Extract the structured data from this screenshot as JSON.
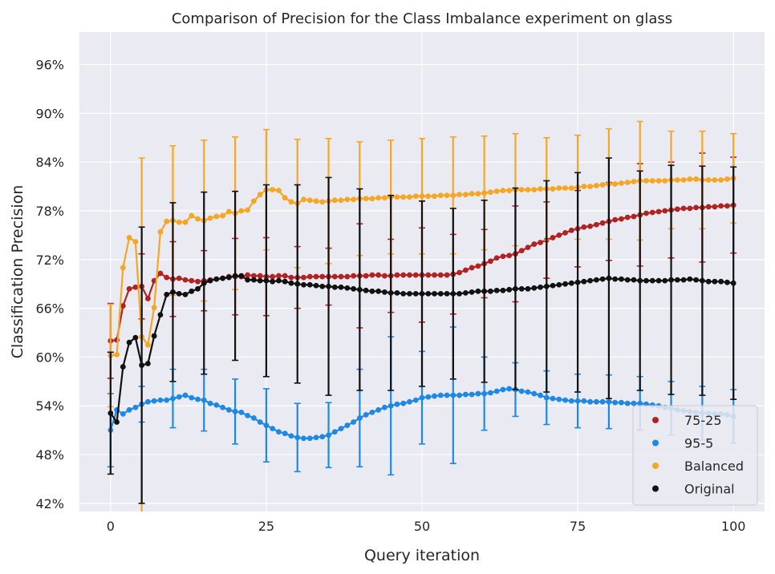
{
  "chart_data": {
    "type": "line",
    "title": "Comparison of Precision for the Class Imbalance experiment on glass",
    "xlabel": "Query iteration",
    "ylabel": "Classification Precision",
    "xlim": [
      -5,
      105
    ],
    "ylim": [
      0.41,
      1.0
    ],
    "x_ticks": [
      0,
      25,
      50,
      75,
      100
    ],
    "x_tick_labels": [
      "0",
      "25",
      "50",
      "75",
      "100"
    ],
    "y_ticks": [
      0.42,
      0.48,
      0.54,
      0.6,
      0.66,
      0.72,
      0.78,
      0.84,
      0.9,
      0.96
    ],
    "y_tick_labels": [
      "42%",
      "48%",
      "54%",
      "60%",
      "66%",
      "72%",
      "78%",
      "84%",
      "90%",
      "96%"
    ],
    "grid": true,
    "legend_position": "bottom-right",
    "background": "#eaeaf2",
    "errorbar_every": 5,
    "series": [
      {
        "name": "75-25",
        "color": "#b22222",
        "values": [
          0.62,
          0.621,
          0.663,
          0.684,
          0.686,
          0.687,
          0.672,
          0.694,
          0.703,
          0.698,
          0.696,
          0.697,
          0.695,
          0.694,
          0.693,
          0.694,
          0.695,
          0.696,
          0.697,
          0.699,
          0.699,
          0.699,
          0.701,
          0.7,
          0.7,
          0.699,
          0.699,
          0.7,
          0.7,
          0.698,
          0.698,
          0.698,
          0.699,
          0.699,
          0.699,
          0.699,
          0.699,
          0.699,
          0.699,
          0.7,
          0.7,
          0.7,
          0.701,
          0.701,
          0.7,
          0.7,
          0.701,
          0.701,
          0.701,
          0.701,
          0.701,
          0.701,
          0.701,
          0.701,
          0.701,
          0.702,
          0.704,
          0.707,
          0.71,
          0.712,
          0.715,
          0.718,
          0.722,
          0.724,
          0.725,
          0.727,
          0.731,
          0.735,
          0.739,
          0.741,
          0.744,
          0.747,
          0.75,
          0.753,
          0.756,
          0.758,
          0.76,
          0.761,
          0.763,
          0.765,
          0.767,
          0.769,
          0.77,
          0.772,
          0.773,
          0.775,
          0.777,
          0.778,
          0.779,
          0.78,
          0.781,
          0.782,
          0.783,
          0.783,
          0.784,
          0.784,
          0.785,
          0.785,
          0.786,
          0.786,
          0.787
        ],
        "errors": [
          [
            0,
            0.046
          ],
          [
            5,
            0.04
          ],
          [
            10,
            0.046
          ],
          [
            15,
            0.037
          ],
          [
            20,
            0.047
          ],
          [
            25,
            0.048
          ],
          [
            30,
            0.038
          ],
          [
            35,
            0.035
          ],
          [
            40,
            0.064
          ],
          [
            45,
            0.045
          ],
          [
            50,
            0.058
          ],
          [
            55,
            0.049
          ],
          [
            60,
            0.042
          ],
          [
            65,
            0.059
          ],
          [
            70,
            0.047
          ],
          [
            75,
            0.047
          ],
          [
            80,
            0.048
          ],
          [
            85,
            0.063
          ],
          [
            90,
            0.059
          ],
          [
            95,
            0.067
          ],
          [
            100,
            0.059
          ]
        ]
      },
      {
        "name": "95-5",
        "color": "#1e88e5",
        "values": [
          0.51,
          0.535,
          0.53,
          0.535,
          0.538,
          0.542,
          0.545,
          0.546,
          0.547,
          0.547,
          0.549,
          0.551,
          0.553,
          0.55,
          0.548,
          0.547,
          0.543,
          0.541,
          0.538,
          0.535,
          0.533,
          0.532,
          0.528,
          0.525,
          0.52,
          0.516,
          0.512,
          0.508,
          0.506,
          0.503,
          0.501,
          0.5,
          0.5,
          0.501,
          0.502,
          0.504,
          0.508,
          0.512,
          0.516,
          0.52,
          0.525,
          0.529,
          0.532,
          0.535,
          0.538,
          0.54,
          0.542,
          0.543,
          0.545,
          0.547,
          0.55,
          0.551,
          0.552,
          0.553,
          0.553,
          0.553,
          0.553,
          0.554,
          0.554,
          0.555,
          0.555,
          0.556,
          0.558,
          0.56,
          0.561,
          0.56,
          0.558,
          0.557,
          0.555,
          0.553,
          0.55,
          0.549,
          0.548,
          0.547,
          0.546,
          0.546,
          0.546,
          0.545,
          0.545,
          0.545,
          0.545,
          0.544,
          0.544,
          0.543,
          0.543,
          0.543,
          0.542,
          0.541,
          0.54,
          0.538,
          0.537,
          0.535,
          0.534,
          0.533,
          0.532,
          0.531,
          0.531,
          0.53,
          0.53,
          0.529,
          0.527
        ],
        "errors": [
          [
            0,
            0.045
          ],
          [
            5,
            0.022
          ],
          [
            10,
            0.036
          ],
          [
            15,
            0.038
          ],
          [
            20,
            0.04
          ],
          [
            25,
            0.045
          ],
          [
            30,
            0.042
          ],
          [
            35,
            0.04
          ],
          [
            40,
            0.06
          ],
          [
            45,
            0.085
          ],
          [
            50,
            0.057
          ],
          [
            55,
            0.084
          ],
          [
            60,
            0.045
          ],
          [
            65,
            0.033
          ],
          [
            70,
            0.033
          ],
          [
            75,
            0.033
          ],
          [
            80,
            0.033
          ],
          [
            85,
            0.033
          ],
          [
            90,
            0.033
          ],
          [
            95,
            0.033
          ],
          [
            100,
            0.033
          ]
        ]
      },
      {
        "name": "Balanced",
        "color": "#f5a623",
        "values": [
          0.602,
          0.603,
          0.71,
          0.747,
          0.742,
          0.625,
          0.615,
          0.661,
          0.754,
          0.767,
          0.768,
          0.766,
          0.766,
          0.774,
          0.77,
          0.768,
          0.771,
          0.773,
          0.774,
          0.779,
          0.777,
          0.78,
          0.781,
          0.792,
          0.8,
          0.806,
          0.806,
          0.805,
          0.796,
          0.791,
          0.789,
          0.794,
          0.793,
          0.792,
          0.791,
          0.792,
          0.793,
          0.793,
          0.794,
          0.794,
          0.795,
          0.795,
          0.795,
          0.796,
          0.796,
          0.797,
          0.797,
          0.797,
          0.797,
          0.798,
          0.798,
          0.798,
          0.798,
          0.799,
          0.799,
          0.799,
          0.8,
          0.8,
          0.801,
          0.801,
          0.802,
          0.803,
          0.804,
          0.805,
          0.805,
          0.806,
          0.806,
          0.806,
          0.806,
          0.807,
          0.807,
          0.807,
          0.808,
          0.808,
          0.808,
          0.809,
          0.81,
          0.81,
          0.811,
          0.812,
          0.813,
          0.813,
          0.814,
          0.815,
          0.816,
          0.817,
          0.817,
          0.817,
          0.817,
          0.817,
          0.818,
          0.818,
          0.818,
          0.819,
          0.819,
          0.818,
          0.818,
          0.818,
          0.818,
          0.819,
          0.82
        ],
        "errors": [
          [
            0,
            0.063
          ],
          [
            5,
            0.22
          ],
          [
            10,
            0.092
          ],
          [
            15,
            0.099
          ],
          [
            20,
            0.094
          ],
          [
            25,
            0.074
          ],
          [
            30,
            0.079
          ],
          [
            35,
            0.077
          ],
          [
            40,
            0.07
          ],
          [
            45,
            0.07
          ],
          [
            50,
            0.071
          ],
          [
            55,
            0.072
          ],
          [
            60,
            0.07
          ],
          [
            65,
            0.069
          ],
          [
            70,
            0.063
          ],
          [
            75,
            0.064
          ],
          [
            80,
            0.068
          ],
          [
            85,
            0.073
          ],
          [
            90,
            0.06
          ],
          [
            95,
            0.06
          ],
          [
            100,
            0.055
          ]
        ]
      },
      {
        "name": "Original",
        "color": "#111111",
        "values": [
          0.531,
          0.52,
          0.588,
          0.618,
          0.624,
          0.59,
          0.592,
          0.626,
          0.652,
          0.677,
          0.68,
          0.678,
          0.677,
          0.681,
          0.684,
          0.691,
          0.694,
          0.696,
          0.697,
          0.698,
          0.7,
          0.7,
          0.695,
          0.695,
          0.694,
          0.694,
          0.693,
          0.694,
          0.693,
          0.691,
          0.69,
          0.689,
          0.689,
          0.688,
          0.687,
          0.687,
          0.686,
          0.686,
          0.685,
          0.684,
          0.683,
          0.682,
          0.681,
          0.681,
          0.68,
          0.679,
          0.679,
          0.678,
          0.678,
          0.678,
          0.678,
          0.678,
          0.678,
          0.678,
          0.678,
          0.678,
          0.678,
          0.679,
          0.68,
          0.681,
          0.681,
          0.681,
          0.682,
          0.682,
          0.683,
          0.684,
          0.684,
          0.684,
          0.685,
          0.686,
          0.687,
          0.688,
          0.689,
          0.69,
          0.691,
          0.692,
          0.693,
          0.694,
          0.695,
          0.696,
          0.697,
          0.696,
          0.696,
          0.695,
          0.695,
          0.694,
          0.694,
          0.694,
          0.694,
          0.694,
          0.695,
          0.695,
          0.695,
          0.696,
          0.695,
          0.694,
          0.693,
          0.693,
          0.693,
          0.692,
          0.691
        ],
        "errors": [
          [
            0,
            0.075
          ],
          [
            5,
            0.17
          ],
          [
            10,
            0.11
          ],
          [
            15,
            0.112
          ],
          [
            20,
            0.104
          ],
          [
            25,
            0.118
          ],
          [
            30,
            0.122
          ],
          [
            35,
            0.134
          ],
          [
            40,
            0.124
          ],
          [
            45,
            0.12
          ],
          [
            50,
            0.114
          ],
          [
            55,
            0.105
          ],
          [
            60,
            0.112
          ],
          [
            65,
            0.124
          ],
          [
            70,
            0.13
          ],
          [
            75,
            0.135
          ],
          [
            80,
            0.148
          ],
          [
            85,
            0.135
          ],
          [
            90,
            0.141
          ],
          [
            95,
            0.141
          ],
          [
            100,
            0.143
          ]
        ]
      }
    ]
  }
}
